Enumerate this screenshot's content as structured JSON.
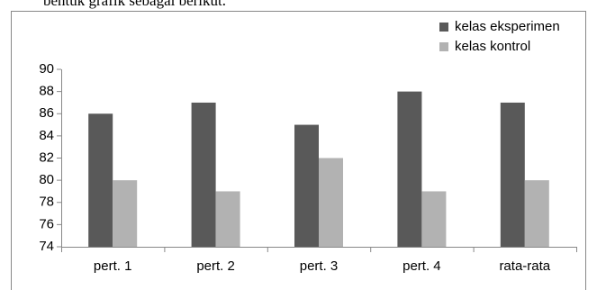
{
  "caption": "bentuk grafik sebagai berikut.",
  "chart_data": {
    "type": "bar",
    "categories": [
      "pert. 1",
      "pert. 2",
      "pert. 3",
      "pert. 4",
      "rata-rata"
    ],
    "series": [
      {
        "name": "kelas eksperimen",
        "color": "#595959",
        "values": [
          86,
          87,
          85,
          88,
          87
        ]
      },
      {
        "name": "kelas kontrol",
        "color": "#b2b2b2",
        "values": [
          80,
          79,
          82,
          79,
          80
        ]
      }
    ],
    "ylim": [
      74,
      90
    ],
    "yticks": [
      74,
      76,
      78,
      80,
      82,
      84,
      86,
      88,
      90
    ],
    "grid": false,
    "legend": "top-right"
  }
}
